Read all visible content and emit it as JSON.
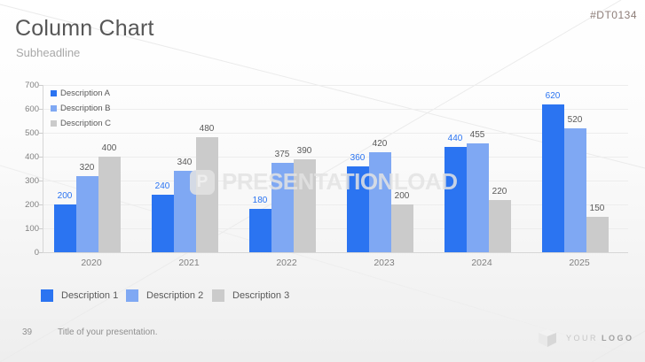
{
  "slide": {
    "title": "Column Chart",
    "subheadline": "Subheadline",
    "product_code": "#DT0134",
    "watermark_text": "PRESENTATIONLOAD",
    "watermark_logo_letter": "P",
    "footer_page_number": "39",
    "footer_text": "Title of your presentation.",
    "logo_text_your": "YOUR",
    "logo_text_logo": "LOGO"
  },
  "colors": {
    "series1": "#2b74f1",
    "series2": "#7fa8f3",
    "series3": "#cbcbcb",
    "value_label_series1": "#2b74f1",
    "value_label_other": "#595959",
    "axis_text": "#7f7f7f",
    "grid": "#ededed",
    "axis_line": "#d6d6d6"
  },
  "chart_data": {
    "type": "bar",
    "title": "",
    "categories": [
      "2020",
      "2021",
      "2022",
      "2023",
      "2024",
      "2025"
    ],
    "series": [
      {
        "name": "Description A",
        "color": "#2b74f1",
        "values": [
          200,
          240,
          180,
          360,
          440,
          620
        ]
      },
      {
        "name": "Description B",
        "color": "#7fa8f3",
        "values": [
          320,
          340,
          375,
          420,
          455,
          520
        ]
      },
      {
        "name": "Description C",
        "color": "#cbcbcb",
        "values": [
          400,
          480,
          390,
          200,
          220,
          150
        ]
      }
    ],
    "xlabel": "",
    "ylabel": "",
    "ylim": [
      0,
      700
    ],
    "ytick_step": 100,
    "grid": true,
    "legend_top_labels": [
      "Description A",
      "Description B",
      "Description C"
    ],
    "legend_bottom_labels": [
      "Description 1",
      "Description 2",
      "Description 3"
    ],
    "legend_position": "top-left-inside"
  }
}
